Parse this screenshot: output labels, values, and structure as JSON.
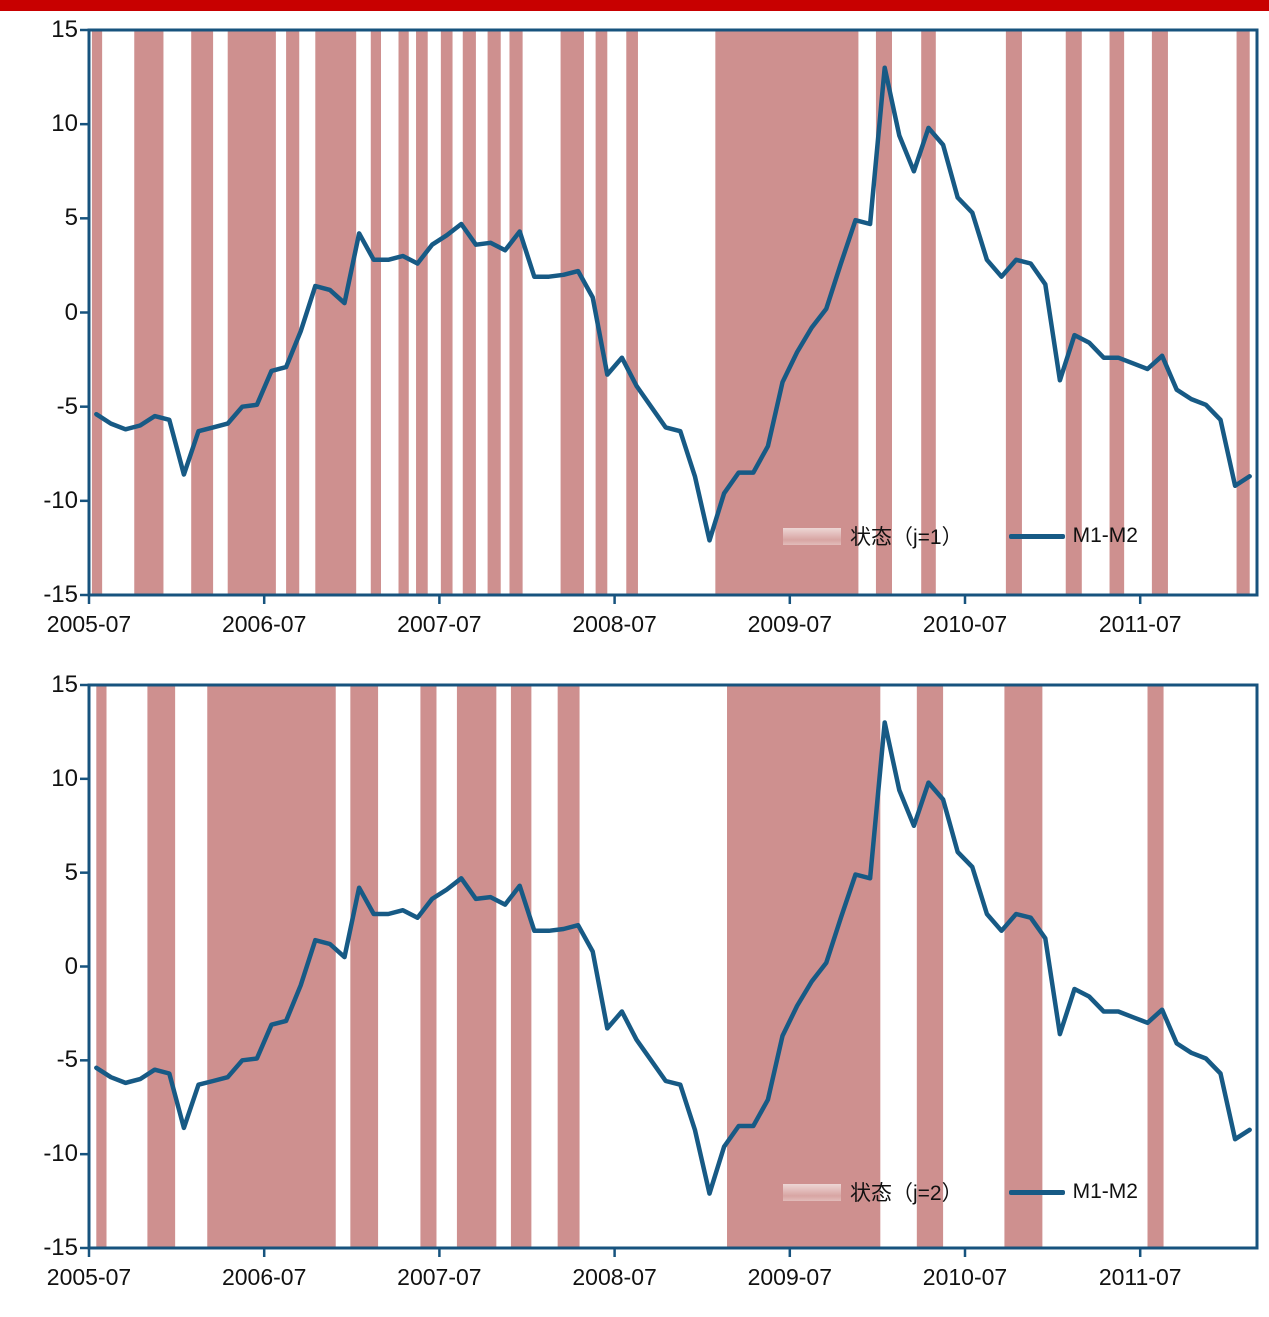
{
  "top_bar": {
    "color": "#C80000"
  },
  "colors": {
    "band": "#CE908F",
    "line": "#175A85",
    "axis": "#17537E",
    "text": "#111111",
    "background": "#FFFFFF"
  },
  "chart_data": [
    {
      "type": "line",
      "title": "",
      "xlabel": "",
      "ylabel": "",
      "ylim": [
        -15,
        15
      ],
      "y_tick_values": [
        15,
        10,
        5,
        0,
        -5,
        -10,
        -15
      ],
      "x_tick_labels": [
        "2005-07",
        "2006-07",
        "2007-07",
        "2008-07",
        "2009-07",
        "2010-07",
        "2011-07"
      ],
      "x_tick_month_index": [
        0,
        12,
        24,
        36,
        48,
        60,
        72
      ],
      "x_start": "2005-07",
      "x_end": "2012-02",
      "x_frequency": "monthly",
      "n_points": 80,
      "grid": false,
      "legend_position": "inside-lower-right",
      "legend_state_label": "状态（j=1）",
      "legend_series_label": "M1-M2",
      "series": [
        {
          "name": "M1-M2",
          "color": "#175A85",
          "values": [
            -5.4,
            -5.9,
            -6.2,
            -6.0,
            -5.5,
            -5.7,
            -8.6,
            -6.3,
            -6.1,
            -5.9,
            -5.0,
            -4.9,
            -3.1,
            -2.9,
            -1.0,
            1.4,
            1.2,
            0.5,
            4.2,
            2.8,
            2.8,
            3.0,
            2.6,
            3.6,
            4.1,
            4.7,
            3.6,
            3.7,
            3.3,
            4.3,
            1.9,
            1.9,
            2.0,
            2.2,
            0.8,
            -3.3,
            -2.4,
            -3.9,
            -5.0,
            -6.1,
            -6.3,
            -8.7,
            -12.1,
            -9.6,
            -8.5,
            -8.5,
            -7.1,
            -3.7,
            -2.1,
            -0.8,
            0.2,
            2.6,
            4.9,
            4.7,
            13.0,
            9.4,
            7.5,
            9.8,
            8.9,
            6.1,
            5.3,
            2.8,
            1.9,
            2.8,
            2.6,
            1.5,
            -3.6,
            -1.2,
            -1.6,
            -2.4,
            -2.4,
            -2.7,
            -3.0,
            -2.3,
            -4.1,
            -4.6,
            -4.9,
            -5.7,
            -9.2,
            -8.7
          ]
        }
      ],
      "shaded_bands": {
        "name": "状态（j=1）",
        "color": "#CE908F",
        "unit": "month_index",
        "ranges": [
          [
            -0.3,
            0.4
          ],
          [
            2.6,
            4.6
          ],
          [
            6.5,
            8.0
          ],
          [
            9.0,
            12.3
          ],
          [
            13.0,
            13.9
          ],
          [
            15.0,
            17.8
          ],
          [
            18.8,
            19.5
          ],
          [
            20.7,
            21.4
          ],
          [
            21.9,
            22.7
          ],
          [
            23.6,
            24.4
          ],
          [
            25.1,
            26.0
          ],
          [
            26.8,
            27.7
          ],
          [
            28.3,
            29.2
          ],
          [
            31.8,
            33.4
          ],
          [
            34.2,
            35.0
          ],
          [
            36.3,
            37.1
          ],
          [
            42.4,
            52.2
          ],
          [
            53.4,
            54.5
          ],
          [
            56.5,
            57.5
          ],
          [
            62.3,
            63.4
          ],
          [
            66.4,
            67.5
          ],
          [
            69.4,
            70.4
          ],
          [
            72.3,
            73.4
          ],
          [
            78.1,
            79.0
          ]
        ]
      }
    },
    {
      "type": "line",
      "title": "",
      "xlabel": "",
      "ylabel": "",
      "ylim": [
        -15,
        15
      ],
      "y_tick_values": [
        15,
        10,
        5,
        0,
        -5,
        -10,
        -15
      ],
      "x_tick_labels": [
        "2005-07",
        "2006-07",
        "2007-07",
        "2008-07",
        "2009-07",
        "2010-07",
        "2011-07"
      ],
      "x_tick_month_index": [
        0,
        12,
        24,
        36,
        48,
        60,
        72
      ],
      "x_start": "2005-07",
      "x_end": "2012-02",
      "x_frequency": "monthly",
      "n_points": 80,
      "grid": false,
      "legend_position": "inside-lower-right",
      "legend_state_label": "状态（j=2）",
      "legend_series_label": "M1-M2",
      "series": [
        {
          "name": "M1-M2",
          "color": "#175A85",
          "values": [
            -5.4,
            -5.9,
            -6.2,
            -6.0,
            -5.5,
            -5.7,
            -8.6,
            -6.3,
            -6.1,
            -5.9,
            -5.0,
            -4.9,
            -3.1,
            -2.9,
            -1.0,
            1.4,
            1.2,
            0.5,
            4.2,
            2.8,
            2.8,
            3.0,
            2.6,
            3.6,
            4.1,
            4.7,
            3.6,
            3.7,
            3.3,
            4.3,
            1.9,
            1.9,
            2.0,
            2.2,
            0.8,
            -3.3,
            -2.4,
            -3.9,
            -5.0,
            -6.1,
            -6.3,
            -8.7,
            -12.1,
            -9.6,
            -8.5,
            -8.5,
            -7.1,
            -3.7,
            -2.1,
            -0.8,
            0.2,
            2.6,
            4.9,
            4.7,
            13.0,
            9.4,
            7.5,
            9.8,
            8.9,
            6.1,
            5.3,
            2.8,
            1.9,
            2.8,
            2.6,
            1.5,
            -3.6,
            -1.2,
            -1.6,
            -2.4,
            -2.4,
            -2.7,
            -3.0,
            -2.3,
            -4.1,
            -4.6,
            -4.9,
            -5.7,
            -9.2,
            -8.7
          ]
        }
      ],
      "shaded_bands": {
        "name": "状态（j=2）",
        "color": "#CE908F",
        "unit": "month_index",
        "ranges": [
          [
            0.0,
            0.7
          ],
          [
            3.5,
            5.4
          ],
          [
            7.6,
            16.4
          ],
          [
            17.4,
            19.3
          ],
          [
            22.2,
            23.3
          ],
          [
            24.7,
            27.4
          ],
          [
            28.4,
            29.8
          ],
          [
            31.6,
            33.1
          ],
          [
            43.2,
            53.7
          ],
          [
            56.2,
            58.0
          ],
          [
            62.2,
            64.8
          ],
          [
            72.0,
            73.1
          ]
        ]
      }
    }
  ]
}
